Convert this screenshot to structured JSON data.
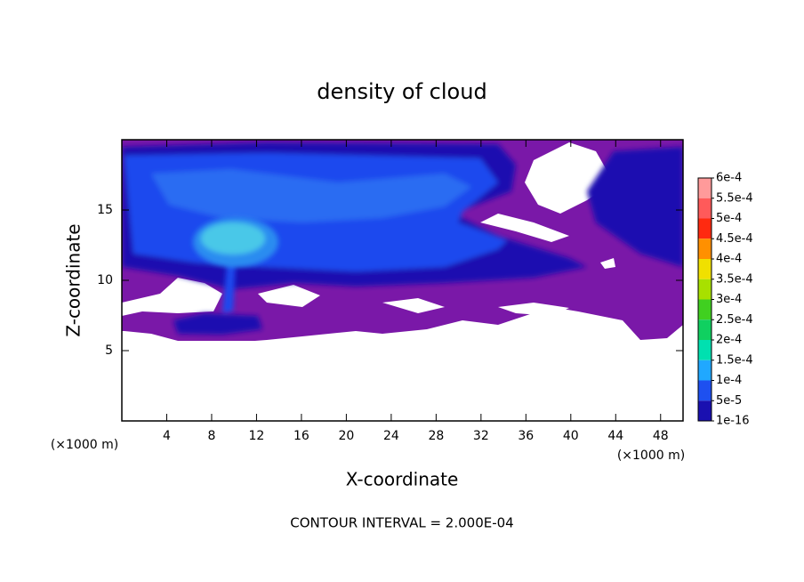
{
  "chart_data": {
    "type": "contour",
    "title": "density of cloud",
    "x_label": "X-coordinate",
    "y_label": "Z-coordinate",
    "x_unit": "(×1000 m)",
    "footnote": "CONTOUR INTERVAL = 2.000E-04",
    "xlim": [
      0,
      50
    ],
    "xticks": [
      4,
      8,
      12,
      16,
      20,
      24,
      28,
      32,
      36,
      40,
      44,
      48
    ],
    "ylim": [
      0,
      20
    ],
    "yticks": [
      5,
      10,
      15
    ],
    "colorbar": {
      "levels": [
        {
          "value": 0.0006,
          "label": "6e-4"
        },
        {
          "value": 0.00055,
          "label": "5.5e-4"
        },
        {
          "value": 0.0005,
          "label": "5e-4"
        },
        {
          "value": 0.00045,
          "label": "4.5e-4"
        },
        {
          "value": 0.0004,
          "label": "4e-4"
        },
        {
          "value": 0.00035,
          "label": "3.5e-4"
        },
        {
          "value": 0.0003,
          "label": "3e-4"
        },
        {
          "value": 0.00025,
          "label": "2.5e-4"
        },
        {
          "value": 0.0002,
          "label": "2e-4"
        },
        {
          "value": 0.00015,
          "label": "1.5e-4"
        },
        {
          "value": 0.0001,
          "label": "1e-4"
        },
        {
          "value": 5e-05,
          "label": "5e-5"
        },
        {
          "value": 1e-16,
          "label": "1e-16"
        }
      ],
      "colors": [
        "#ff9a9a",
        "#ff5a5a",
        "#ff2a10",
        "#ff9000",
        "#f0e000",
        "#a8e000",
        "#40d020",
        "#10d060",
        "#00e0b0",
        "#20a8ff",
        "#1e50f0",
        "#1a10b0"
      ]
    }
  }
}
